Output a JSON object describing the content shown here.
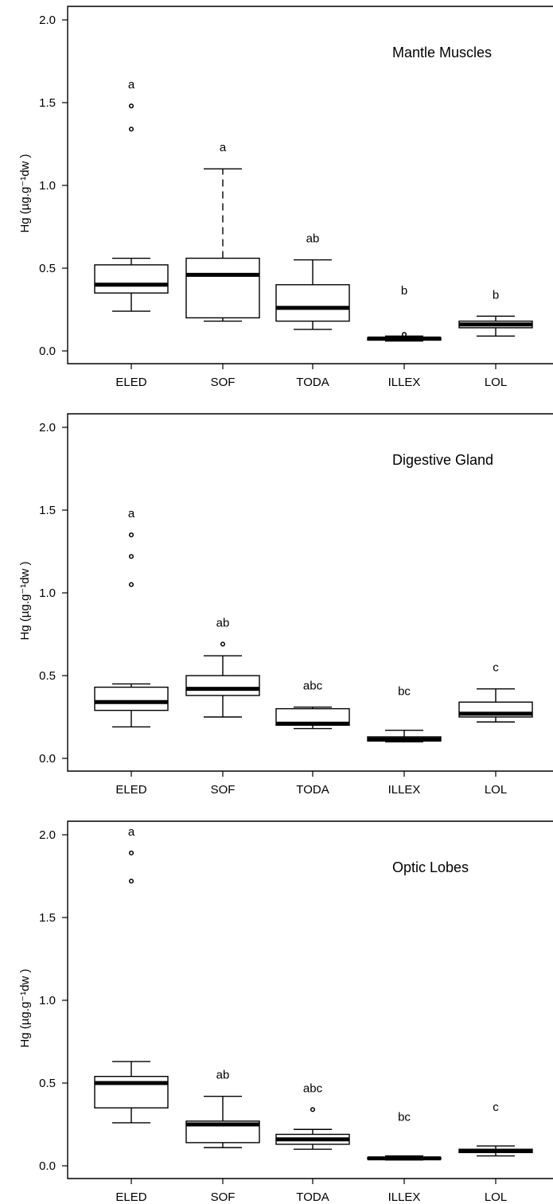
{
  "chart_data": [
    {
      "type": "boxplot",
      "title": "Mantle Muscles",
      "ylabel": "Hg (µg.g⁻¹dw )",
      "ylim": [
        0,
        2.0
      ],
      "yticks": [
        "0.0",
        "0.5",
        "1.0",
        "1.5",
        "2.0"
      ],
      "categories": [
        "ELED",
        "SOF",
        "TODA",
        "ILLEX",
        "LOL"
      ],
      "boxes": [
        {
          "category": "ELED",
          "whisker_low": 0.24,
          "q1": 0.35,
          "median": 0.4,
          "q3": 0.52,
          "whisker_high": 0.56,
          "outliers": [
            1.34,
            1.48
          ],
          "letter": "a",
          "dashed": false
        },
        {
          "category": "SOF",
          "whisker_low": 0.18,
          "q1": 0.2,
          "median": 0.46,
          "q3": 0.56,
          "whisker_high": 1.1,
          "outliers": [],
          "letter": "a",
          "dashed": true
        },
        {
          "category": "TODA",
          "whisker_low": 0.13,
          "q1": 0.18,
          "median": 0.26,
          "q3": 0.4,
          "whisker_high": 0.55,
          "outliers": [],
          "letter": "ab",
          "dashed": false
        },
        {
          "category": "ILLEX",
          "whisker_low": 0.06,
          "q1": 0.065,
          "median": 0.075,
          "q3": 0.08,
          "whisker_high": 0.09,
          "outliers": [
            0.1
          ],
          "letter": "b",
          "dashed": false
        },
        {
          "category": "LOL",
          "whisker_low": 0.09,
          "q1": 0.14,
          "median": 0.16,
          "q3": 0.18,
          "whisker_high": 0.21,
          "outliers": [],
          "letter": "b",
          "dashed": false
        }
      ]
    },
    {
      "type": "boxplot",
      "title": "Digestive Gland",
      "ylabel": "Hg (µg.g⁻¹dw )",
      "ylim": [
        0,
        2.0
      ],
      "yticks": [
        "0.0",
        "0.5",
        "1.0",
        "1.5",
        "2.0"
      ],
      "categories": [
        "ELED",
        "SOF",
        "TODA",
        "ILLEX",
        "LOL"
      ],
      "boxes": [
        {
          "category": "ELED",
          "whisker_low": 0.19,
          "q1": 0.29,
          "median": 0.34,
          "q3": 0.43,
          "whisker_high": 0.45,
          "outliers": [
            1.05,
            1.22,
            1.35
          ],
          "letter": "a",
          "dashed": false
        },
        {
          "category": "SOF",
          "whisker_low": 0.25,
          "q1": 0.38,
          "median": 0.42,
          "q3": 0.5,
          "whisker_high": 0.62,
          "outliers": [
            0.69
          ],
          "letter": "ab",
          "dashed": false
        },
        {
          "category": "TODA",
          "whisker_low": 0.18,
          "q1": 0.2,
          "median": 0.21,
          "q3": 0.3,
          "whisker_high": 0.31,
          "outliers": [],
          "letter": "abc",
          "dashed": false
        },
        {
          "category": "ILLEX",
          "whisker_low": 0.1,
          "q1": 0.105,
          "median": 0.115,
          "q3": 0.13,
          "whisker_high": 0.17,
          "outliers": [],
          "letter": "bc",
          "dashed": false
        },
        {
          "category": "LOL",
          "whisker_low": 0.22,
          "q1": 0.25,
          "median": 0.27,
          "q3": 0.34,
          "whisker_high": 0.42,
          "outliers": [],
          "letter": "c",
          "dashed": false
        }
      ]
    },
    {
      "type": "boxplot",
      "title": "Optic Lobes",
      "ylabel": "Hg (µg.g⁻¹dw )",
      "ylim": [
        0,
        2.0
      ],
      "yticks": [
        "0.0",
        "0.5",
        "1.0",
        "1.5",
        "2.0"
      ],
      "categories": [
        "ELED",
        "SOF",
        "TODA",
        "ILLEX",
        "LOL"
      ],
      "boxes": [
        {
          "category": "ELED",
          "whisker_low": 0.26,
          "q1": 0.35,
          "median": 0.5,
          "q3": 0.54,
          "whisker_high": 0.63,
          "outliers": [
            1.72,
            1.89
          ],
          "letter": "a",
          "dashed": false
        },
        {
          "category": "SOF",
          "whisker_low": 0.11,
          "q1": 0.14,
          "median": 0.25,
          "q3": 0.27,
          "whisker_high": 0.42,
          "outliers": [],
          "letter": "ab",
          "dashed": false
        },
        {
          "category": "TODA",
          "whisker_low": 0.1,
          "q1": 0.13,
          "median": 0.16,
          "q3": 0.19,
          "whisker_high": 0.22,
          "outliers": [
            0.34
          ],
          "letter": "abc",
          "dashed": false
        },
        {
          "category": "ILLEX",
          "whisker_low": 0.035,
          "q1": 0.04,
          "median": 0.045,
          "q3": 0.05,
          "whisker_high": 0.06,
          "outliers": [],
          "letter": "bc",
          "dashed": false
        },
        {
          "category": "LOL",
          "whisker_low": 0.06,
          "q1": 0.08,
          "median": 0.09,
          "q3": 0.1,
          "whisker_high": 0.12,
          "outliers": [],
          "letter": "c",
          "dashed": false
        }
      ]
    }
  ]
}
